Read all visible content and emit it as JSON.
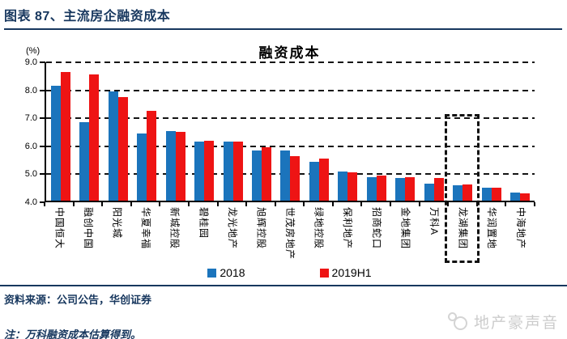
{
  "header": {
    "title": "图表 87、主流房企融资成本"
  },
  "chart_data": {
    "type": "bar",
    "title": "融资成本",
    "unit_label": "(%)",
    "categories": [
      "中国恒大",
      "融创中国",
      "阳光城",
      "华夏幸福",
      "新城控股",
      "碧桂园",
      "龙光地产",
      "旭辉控股",
      "世茂房地产",
      "绿地控股",
      "保利地产",
      "招商蛇口",
      "金地集团",
      "万科A",
      "龙湖集团",
      "华润置地",
      "中海地产"
    ],
    "series": [
      {
        "name": "2018",
        "color": "#1B74BC",
        "values": [
          8.1,
          6.8,
          7.9,
          6.4,
          6.5,
          6.1,
          6.1,
          5.8,
          5.8,
          5.4,
          5.05,
          4.85,
          4.8,
          4.6,
          4.55,
          4.47,
          4.3
        ]
      },
      {
        "name": "2019H1",
        "color": "#EE1414",
        "values": [
          8.6,
          8.5,
          7.7,
          7.2,
          6.45,
          6.15,
          6.1,
          5.9,
          5.6,
          5.5,
          5.0,
          4.9,
          4.85,
          4.8,
          4.57,
          4.45,
          4.27
        ]
      }
    ],
    "ylim": [
      4.0,
      9.0
    ],
    "yticks": [
      "9.0",
      "8.0",
      "7.0",
      "6.0",
      "5.0",
      "4.0"
    ],
    "grid": "horizontal dashed",
    "legend_position": "bottom center",
    "highlighted_category": "龙湖集团"
  },
  "footer": {
    "source": "资料来源：公司公告，华创证券",
    "note": "注：万科融资成本估算得到。"
  },
  "watermark": {
    "text": "地产豪声音"
  },
  "colors": {
    "accent_navy": "#17375E",
    "bar_blue": "#1B74BC",
    "bar_red": "#EE1414",
    "grid_black": "#141414",
    "watermark_gray": "#CCCCCC"
  }
}
